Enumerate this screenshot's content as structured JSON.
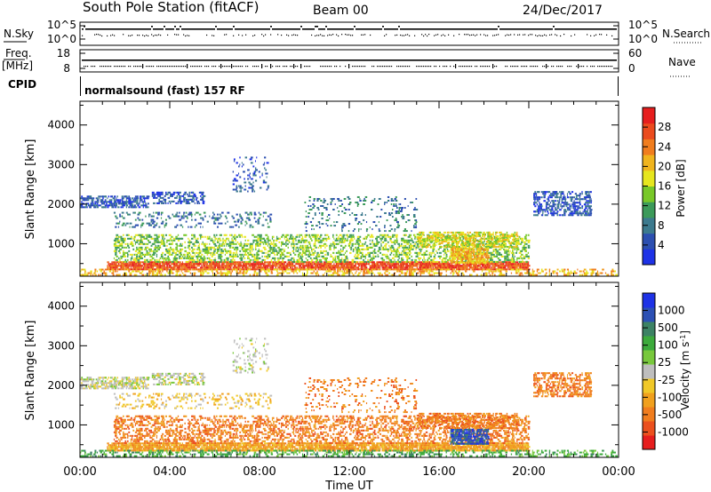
{
  "header": {
    "title": "South Pole Station (fitACF)",
    "beam": "Beam 00",
    "date": "24/Dec/2017"
  },
  "aux_panels": {
    "nsky": {
      "label": "N.Sky",
      "ticks_left": [
        "10^5",
        "10^0"
      ]
    },
    "nsearch": {
      "label": "N.Search",
      "ticks_right": [
        "10^5",
        "10^0"
      ]
    },
    "freq": {
      "label_top": "Freq.",
      "label_bottom": "[MHz]",
      "ticks_left": [
        "18",
        "8"
      ]
    },
    "nave": {
      "label": "Nave",
      "ticks_right": [
        "60",
        "0"
      ]
    },
    "cpid": {
      "label": "CPID",
      "mode_text": "normalsound (fast) 157 RF"
    }
  },
  "chart_data": [
    {
      "type": "heatmap",
      "panel": "power",
      "ylabel": "Slant Range [km]",
      "ylim": [
        180,
        4600
      ],
      "yticks": [
        "1000",
        "2000",
        "3000",
        "4000"
      ],
      "xlim": [
        "00:00",
        "24:00"
      ],
      "colorbar": {
        "label": "Power [dB]",
        "ticks": [
          "4",
          "8",
          "12",
          "16",
          "20",
          "24",
          "28"
        ],
        "colors": [
          "#1e32e6",
          "#2c4fb0",
          "#3c7a8e",
          "#3c9a5a",
          "#78c828",
          "#e6e61e",
          "#f0b41e",
          "#f07d1e",
          "#eb4b1e",
          "#e61e1e"
        ]
      },
      "features": [
        {
          "description_range_km": [
            300,
            500
          ],
          "hours": [
            1,
            20
          ],
          "power_dB": 28
        },
        {
          "description_range_km": [
            500,
            1200
          ],
          "hours": [
            1,
            20
          ],
          "power_dB": 14
        },
        {
          "description_range_km": [
            1400,
            2300
          ],
          "hours": [
            0,
            8
          ],
          "power_dB": 8
        },
        {
          "description_range_km": [
            1600,
            2200
          ],
          "hours": [
            20,
            23
          ],
          "power_dB": 8
        }
      ]
    },
    {
      "type": "heatmap",
      "panel": "velocity",
      "ylabel": "Slant Range [km]",
      "xlabel": "Time UT",
      "ylim": [
        180,
        4600
      ],
      "yticks": [
        "1000",
        "2000",
        "3000",
        "4000"
      ],
      "xlim": [
        "00:00",
        "24:00"
      ],
      "xticks": [
        "00:00",
        "04:00",
        "08:00",
        "12:00",
        "16:00",
        "20:00",
        "00:00"
      ],
      "colorbar": {
        "label": "Velocity [m s",
        "label_sup": "-1",
        "label_end": "]",
        "ticks": [
          "1000",
          "500",
          "100",
          "25",
          "-25",
          "-100",
          "-500",
          "-1000"
        ],
        "colors": [
          "#1e32e6",
          "#2c50b4",
          "#3c8264",
          "#3caa3c",
          "#78c83c",
          "#bebebe",
          "#f0c828",
          "#f0a01e",
          "#f07d1e",
          "#eb501e",
          "#e61e1e"
        ]
      },
      "features": [
        {
          "description_range_km": [
            1900,
            2200
          ],
          "hours": [
            0,
            8
          ],
          "velocity_ms": 0
        },
        {
          "description_range_km": [
            300,
            1500
          ],
          "hours": [
            1,
            20
          ],
          "velocity_ms": -300
        },
        {
          "description_range_km": [
            500,
            900
          ],
          "hours": [
            16,
            18
          ],
          "velocity_ms": 800
        }
      ]
    }
  ]
}
